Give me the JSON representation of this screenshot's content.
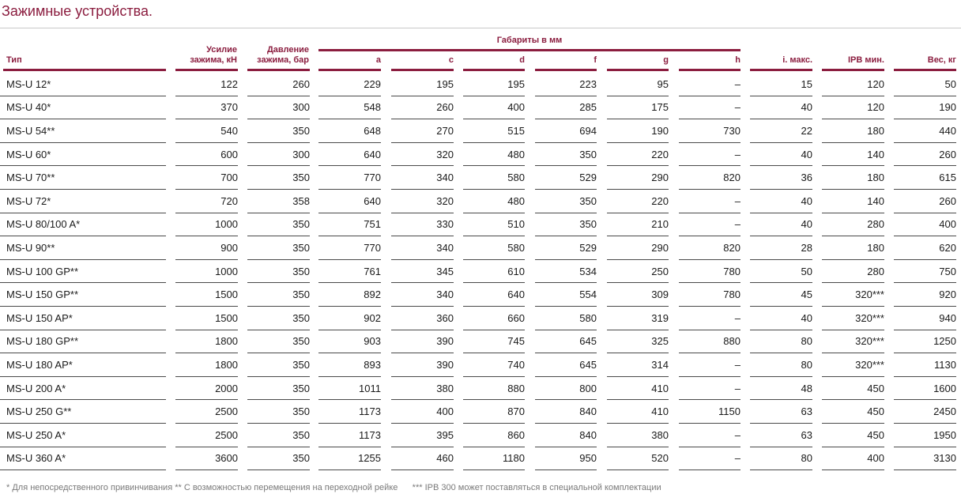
{
  "title": "Зажимные устройства.",
  "headers": {
    "type": "Тип",
    "force_l1": "Усилие",
    "force_l2": "зажима, кН",
    "press_l1": "Давление",
    "press_l2": "зажима, бар",
    "dims": "Габариты в мм",
    "a": "a",
    "c": "c",
    "d": "d",
    "f": "f",
    "g": "g",
    "hh": "h",
    "i": "i. макс.",
    "ipb": "IPB мин.",
    "weight": "Вес, кг"
  },
  "rows": [
    [
      "MS-U 12*",
      "122",
      "260",
      "229",
      "195",
      "195",
      "223",
      "95",
      "–",
      "15",
      "120",
      "50"
    ],
    [
      "MS-U 40*",
      "370",
      "300",
      "548",
      "260",
      "400",
      "285",
      "175",
      "–",
      "40",
      "120",
      "190"
    ],
    [
      "MS-U 54**",
      "540",
      "350",
      "648",
      "270",
      "515",
      "694",
      "190",
      "730",
      "22",
      "180",
      "440"
    ],
    [
      "MS-U 60*",
      "600",
      "300",
      "640",
      "320",
      "480",
      "350",
      "220",
      "–",
      "40",
      "140",
      "260"
    ],
    [
      "MS-U 70**",
      "700",
      "350",
      "770",
      "340",
      "580",
      "529",
      "290",
      "820",
      "36",
      "180",
      "615"
    ],
    [
      "MS-U 72*",
      "720",
      "358",
      "640",
      "320",
      "480",
      "350",
      "220",
      "–",
      "40",
      "140",
      "260"
    ],
    [
      "MS-U 80/100 A*",
      "1000",
      "350",
      "751",
      "330",
      "510",
      "350",
      "210",
      "–",
      "40",
      "280",
      "400"
    ],
    [
      "MS-U 90**",
      "900",
      "350",
      "770",
      "340",
      "580",
      "529",
      "290",
      "820",
      "28",
      "180",
      "620"
    ],
    [
      "MS-U 100 GP**",
      "1000",
      "350",
      "761",
      "345",
      "610",
      "534",
      "250",
      "780",
      "50",
      "280",
      "750"
    ],
    [
      "MS-U 150 GP**",
      "1500",
      "350",
      "892",
      "340",
      "640",
      "554",
      "309",
      "780",
      "45",
      "320***",
      "920"
    ],
    [
      "MS-U 150 AP*",
      "1500",
      "350",
      "902",
      "360",
      "660",
      "580",
      "319",
      "–",
      "40",
      "320***",
      "940"
    ],
    [
      "MS-U 180 GP**",
      "1800",
      "350",
      "903",
      "390",
      "745",
      "645",
      "325",
      "880",
      "80",
      "320***",
      "1250"
    ],
    [
      "MS-U 180 AP*",
      "1800",
      "350",
      "893",
      "390",
      "740",
      "645",
      "314",
      "–",
      "80",
      "320***",
      "1130"
    ],
    [
      "MS-U 200 A*",
      "2000",
      "350",
      "1011",
      "380",
      "880",
      "800",
      "410",
      "–",
      "48",
      "450",
      "1600"
    ],
    [
      "MS-U 250 G**",
      "2500",
      "350",
      "1173",
      "400",
      "870",
      "840",
      "410",
      "1150",
      "63",
      "450",
      "2450"
    ],
    [
      "MS-U 250 A*",
      "2500",
      "350",
      "1173",
      "395",
      "860",
      "840",
      "380",
      "–",
      "63",
      "450",
      "1950"
    ],
    [
      "MS-U 360 A*",
      "3600",
      "350",
      "1255",
      "460",
      "1180",
      "950",
      "520",
      "–",
      "80",
      "400",
      "3130"
    ]
  ],
  "footnote": "* Для непосредственного привинчивания ** С возможностью перемещения на переходной рейке      *** IPB 300 может поставляться в специальной комплектации"
}
